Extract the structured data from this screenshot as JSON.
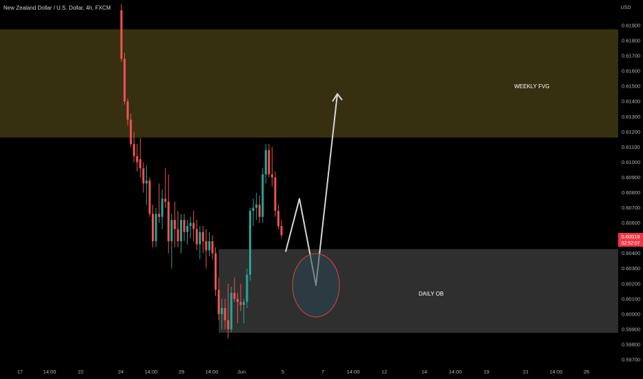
{
  "header": {
    "symbol_title": "New Zealand Dollar / U.S. Dollar, 4h, FXCM"
  },
  "price_axis": {
    "currency": "USD",
    "ticks": [
      "0.61900",
      "0.61800",
      "0.61700",
      "0.61600",
      "0.61500",
      "0.61400",
      "0.61300",
      "0.61200",
      "0.61100",
      "0.61000",
      "0.60900",
      "0.60800",
      "0.60700",
      "0.60600",
      "0.60500",
      "0.60400",
      "0.60300",
      "0.60200",
      "0.60100",
      "0.60000",
      "0.59900",
      "0.59800",
      "0.59700"
    ],
    "current_price": "0.60519",
    "countdown": "02:52:07"
  },
  "time_axis": {
    "ticks": [
      "17",
      "14:00",
      "22",
      "24",
      "14:00",
      "29",
      "14:00",
      "Jun",
      "5",
      "7",
      "14:00",
      "12",
      "14",
      "14:00",
      "19",
      "21",
      "14:00",
      "26"
    ]
  },
  "zones": {
    "weekly_fvg": {
      "label": "WEEKLY FVG",
      "top": 0.61875,
      "bottom": 0.61162
    },
    "daily_ob": {
      "label": "DAILY OB",
      "top": 0.60428,
      "bottom": 0.59877
    }
  },
  "colors": {
    "bull": "#26a69a",
    "bear": "#ef5350",
    "fvg": "#363010",
    "ob": "#2f2f2f",
    "price_tag": "#f23645",
    "arrow": "#d8d8d8",
    "circle": "#e0443e",
    "axis_text": "#b2b5be"
  },
  "chart_data": {
    "type": "candlestick",
    "title": "New Zealand Dollar / U.S. Dollar, 4h, FXCM",
    "ylabel": "USD",
    "ylim": [
      0.5966,
      0.6204
    ],
    "candles": [
      {
        "o": 0.62,
        "h": 0.6204,
        "l": 0.6166,
        "c": 0.6168
      },
      {
        "o": 0.6168,
        "h": 0.6172,
        "l": 0.6138,
        "c": 0.614
      },
      {
        "o": 0.614,
        "h": 0.6142,
        "l": 0.6124,
        "c": 0.6128
      },
      {
        "o": 0.6128,
        "h": 0.6132,
        "l": 0.611,
        "c": 0.6112
      },
      {
        "o": 0.6112,
        "h": 0.612,
        "l": 0.61,
        "c": 0.6104
      },
      {
        "o": 0.6104,
        "h": 0.6112,
        "l": 0.6094,
        "c": 0.61
      },
      {
        "o": 0.6102,
        "h": 0.6116,
        "l": 0.609,
        "c": 0.6096
      },
      {
        "o": 0.6096,
        "h": 0.61,
        "l": 0.608,
        "c": 0.6086
      },
      {
        "o": 0.6086,
        "h": 0.6098,
        "l": 0.6072,
        "c": 0.6088
      },
      {
        "o": 0.6088,
        "h": 0.609,
        "l": 0.6064,
        "c": 0.6066
      },
      {
        "o": 0.6066,
        "h": 0.6072,
        "l": 0.6044,
        "c": 0.6048
      },
      {
        "o": 0.6048,
        "h": 0.607,
        "l": 0.6044,
        "c": 0.6066
      },
      {
        "o": 0.6066,
        "h": 0.6086,
        "l": 0.606,
        "c": 0.6064
      },
      {
        "o": 0.6064,
        "h": 0.6082,
        "l": 0.6056,
        "c": 0.6076
      },
      {
        "o": 0.6076,
        "h": 0.6096,
        "l": 0.607,
        "c": 0.6074
      },
      {
        "o": 0.6074,
        "h": 0.6092,
        "l": 0.604,
        "c": 0.6048
      },
      {
        "o": 0.6048,
        "h": 0.6066,
        "l": 0.603,
        "c": 0.6062
      },
      {
        "o": 0.6062,
        "h": 0.6074,
        "l": 0.6044,
        "c": 0.6056
      },
      {
        "o": 0.6056,
        "h": 0.6068,
        "l": 0.6044,
        "c": 0.6048
      },
      {
        "o": 0.6048,
        "h": 0.6066,
        "l": 0.604,
        "c": 0.6062
      },
      {
        "o": 0.6062,
        "h": 0.6066,
        "l": 0.6048,
        "c": 0.6054
      },
      {
        "o": 0.6054,
        "h": 0.6062,
        "l": 0.6046,
        "c": 0.6058
      },
      {
        "o": 0.6058,
        "h": 0.6064,
        "l": 0.605,
        "c": 0.606
      },
      {
        "o": 0.606,
        "h": 0.6068,
        "l": 0.6048,
        "c": 0.6056
      },
      {
        "o": 0.6056,
        "h": 0.6062,
        "l": 0.6042,
        "c": 0.6046
      },
      {
        "o": 0.6046,
        "h": 0.6058,
        "l": 0.6036,
        "c": 0.6054
      },
      {
        "o": 0.6054,
        "h": 0.6058,
        "l": 0.604,
        "c": 0.6048
      },
      {
        "o": 0.6048,
        "h": 0.6056,
        "l": 0.603,
        "c": 0.6042
      },
      {
        "o": 0.6042,
        "h": 0.6054,
        "l": 0.6038,
        "c": 0.6048
      },
      {
        "o": 0.6048,
        "h": 0.6052,
        "l": 0.6036,
        "c": 0.604
      },
      {
        "o": 0.604,
        "h": 0.6044,
        "l": 0.6012,
        "c": 0.6016
      },
      {
        "o": 0.6016,
        "h": 0.6024,
        "l": 0.5996,
        "c": 0.6
      },
      {
        "o": 0.6,
        "h": 0.601,
        "l": 0.599,
        "c": 0.6004
      },
      {
        "o": 0.6004,
        "h": 0.601,
        "l": 0.599,
        "c": 0.5996
      },
      {
        "o": 0.5996,
        "h": 0.602,
        "l": 0.5984,
        "c": 0.599
      },
      {
        "o": 0.599,
        "h": 0.6018,
        "l": 0.5988,
        "c": 0.6014
      },
      {
        "o": 0.6014,
        "h": 0.6024,
        "l": 0.6008,
        "c": 0.601
      },
      {
        "o": 0.601,
        "h": 0.6014,
        "l": 0.5994,
        "c": 0.6008
      },
      {
        "o": 0.6008,
        "h": 0.602,
        "l": 0.6002,
        "c": 0.6006
      },
      {
        "o": 0.6006,
        "h": 0.601,
        "l": 0.5994,
        "c": 0.6008
      },
      {
        "o": 0.6008,
        "h": 0.603,
        "l": 0.6004,
        "c": 0.6026
      },
      {
        "o": 0.6026,
        "h": 0.607,
        "l": 0.6022,
        "c": 0.6068
      },
      {
        "o": 0.6068,
        "h": 0.6076,
        "l": 0.6058,
        "c": 0.607
      },
      {
        "o": 0.607,
        "h": 0.608,
        "l": 0.6062,
        "c": 0.6072
      },
      {
        "o": 0.6072,
        "h": 0.6078,
        "l": 0.606,
        "c": 0.6064
      },
      {
        "o": 0.6064,
        "h": 0.6096,
        "l": 0.606,
        "c": 0.6092
      },
      {
        "o": 0.6092,
        "h": 0.6112,
        "l": 0.6086,
        "c": 0.6108
      },
      {
        "o": 0.6108,
        "h": 0.6112,
        "l": 0.609,
        "c": 0.6092
      },
      {
        "o": 0.6092,
        "h": 0.611,
        "l": 0.6084,
        "c": 0.609
      },
      {
        "o": 0.609,
        "h": 0.6094,
        "l": 0.6064,
        "c": 0.6068
      },
      {
        "o": 0.6068,
        "h": 0.6072,
        "l": 0.6056,
        "c": 0.6058
      },
      {
        "o": 0.6058,
        "h": 0.6062,
        "l": 0.605,
        "c": 0.6052
      }
    ],
    "projection_path": [
      0.6041,
      0.6076,
      0.6019,
      0.6145
    ]
  }
}
